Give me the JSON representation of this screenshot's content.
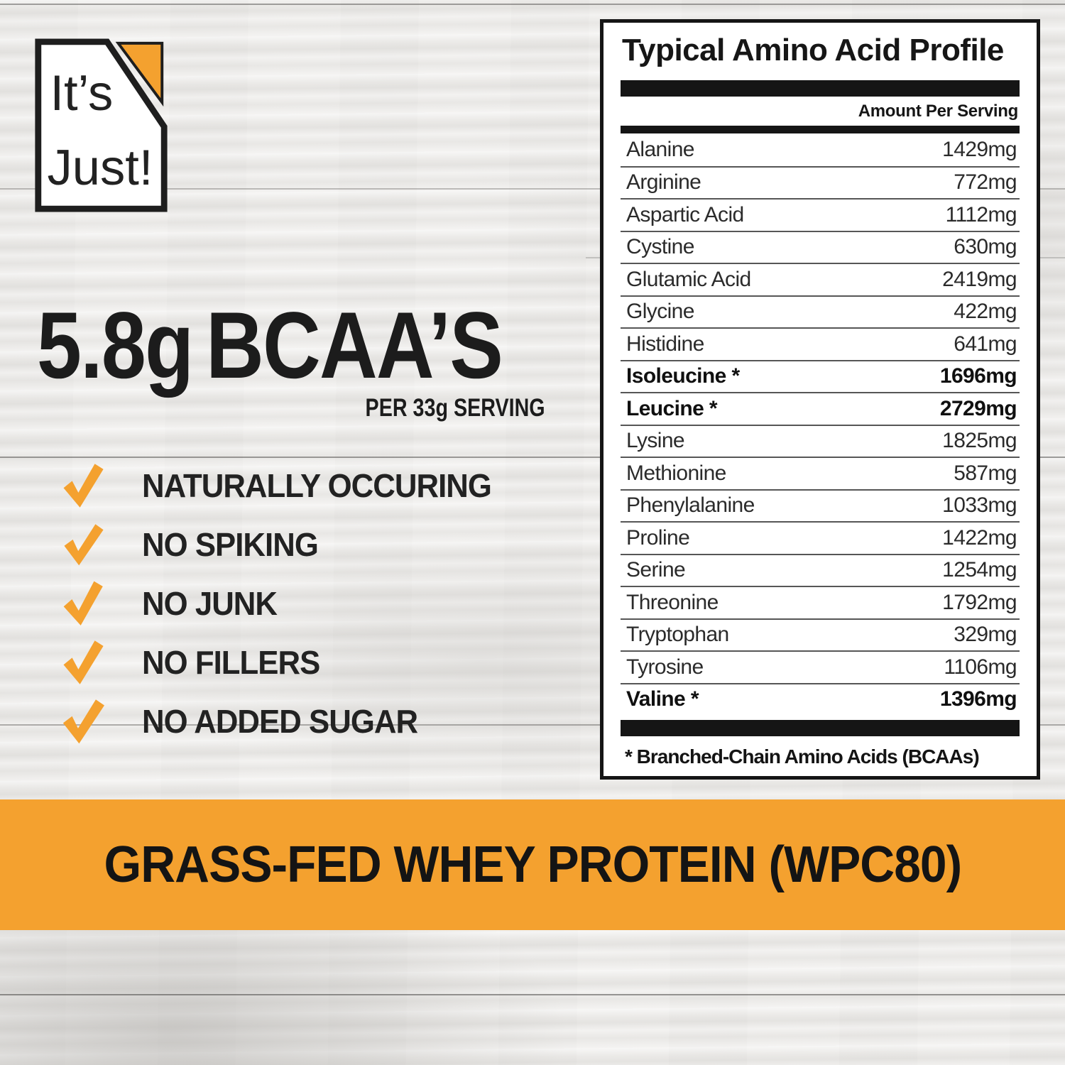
{
  "colors": {
    "accent_orange": "#F4A12F",
    "ink": "#1c1c1c"
  },
  "logo": {
    "line1": "It’s",
    "line2": "Just!"
  },
  "headline": {
    "amount": "5.8g",
    "label": "BCAA’S",
    "subtext": "PER 33g SERVING"
  },
  "checklist": {
    "items": [
      "NATURALLY OCCURING",
      "NO SPIKING",
      "NO JUNK",
      "NO FILLERS",
      "NO ADDED SUGAR"
    ]
  },
  "amino_table": {
    "title": "Typical Amino Acid Profile",
    "column_header": "Amount Per Serving",
    "rows": [
      {
        "name": "Alanine",
        "amount": "1429mg",
        "bold": false
      },
      {
        "name": "Arginine",
        "amount": "772mg",
        "bold": false
      },
      {
        "name": "Aspartic Acid",
        "amount": "1112mg",
        "bold": false
      },
      {
        "name": "Cystine",
        "amount": "630mg",
        "bold": false
      },
      {
        "name": "Glutamic Acid",
        "amount": "2419mg",
        "bold": false
      },
      {
        "name": "Glycine",
        "amount": "422mg",
        "bold": false
      },
      {
        "name": "Histidine",
        "amount": "641mg",
        "bold": false
      },
      {
        "name": "Isoleucine *",
        "amount": "1696mg",
        "bold": true
      },
      {
        "name": "Leucine *",
        "amount": "2729mg",
        "bold": true
      },
      {
        "name": "Lysine",
        "amount": "1825mg",
        "bold": false
      },
      {
        "name": "Methionine",
        "amount": "587mg",
        "bold": false
      },
      {
        "name": "Phenylalanine",
        "amount": "1033mg",
        "bold": false
      },
      {
        "name": "Proline",
        "amount": "1422mg",
        "bold": false
      },
      {
        "name": "Serine",
        "amount": "1254mg",
        "bold": false
      },
      {
        "name": "Threonine",
        "amount": "1792mg",
        "bold": false
      },
      {
        "name": "Tryptophan",
        "amount": "329mg",
        "bold": false
      },
      {
        "name": "Tyrosine",
        "amount": "1106mg",
        "bold": false
      },
      {
        "name": "Valine *",
        "amount": "1396mg",
        "bold": true
      }
    ],
    "footnote": "* Branched-Chain Amino Acids (BCAAs)"
  },
  "banner": {
    "text": "GRASS-FED WHEY PROTEIN (WPC80)"
  }
}
